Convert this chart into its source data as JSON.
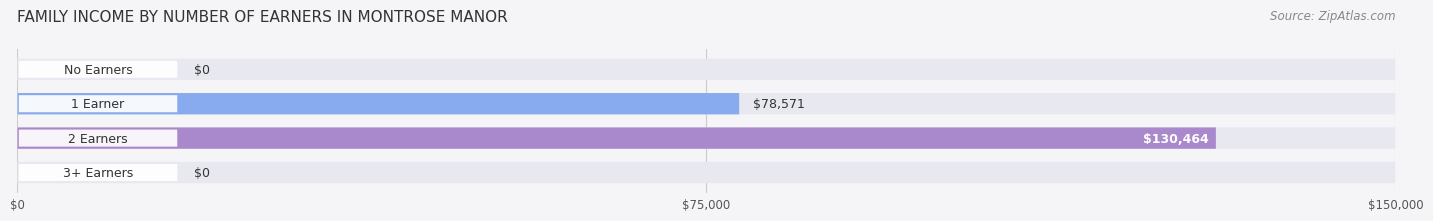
{
  "title": "FAMILY INCOME BY NUMBER OF EARNERS IN MONTROSE MANOR",
  "source": "Source: ZipAtlas.com",
  "categories": [
    "No Earners",
    "1 Earner",
    "2 Earners",
    "3+ Earners"
  ],
  "values": [
    0,
    78571,
    130464,
    0
  ],
  "bar_colors": [
    "#f4a0a0",
    "#88aaee",
    "#aa88cc",
    "#66ccbb"
  ],
  "value_labels": [
    "$0",
    "$78,571",
    "$130,464",
    "$0"
  ],
  "value_inside": [
    false,
    false,
    true,
    false
  ],
  "x_ticks": [
    0,
    75000,
    150000
  ],
  "x_tick_labels": [
    "$0",
    "$75,000",
    "$150,000"
  ],
  "xlim": [
    0,
    150000
  ],
  "bg_color": "#f5f5f8",
  "bar_bg_color": "#e8e8f0",
  "title_fontsize": 11,
  "source_fontsize": 8.5,
  "label_fontsize": 9,
  "value_fontsize": 9
}
